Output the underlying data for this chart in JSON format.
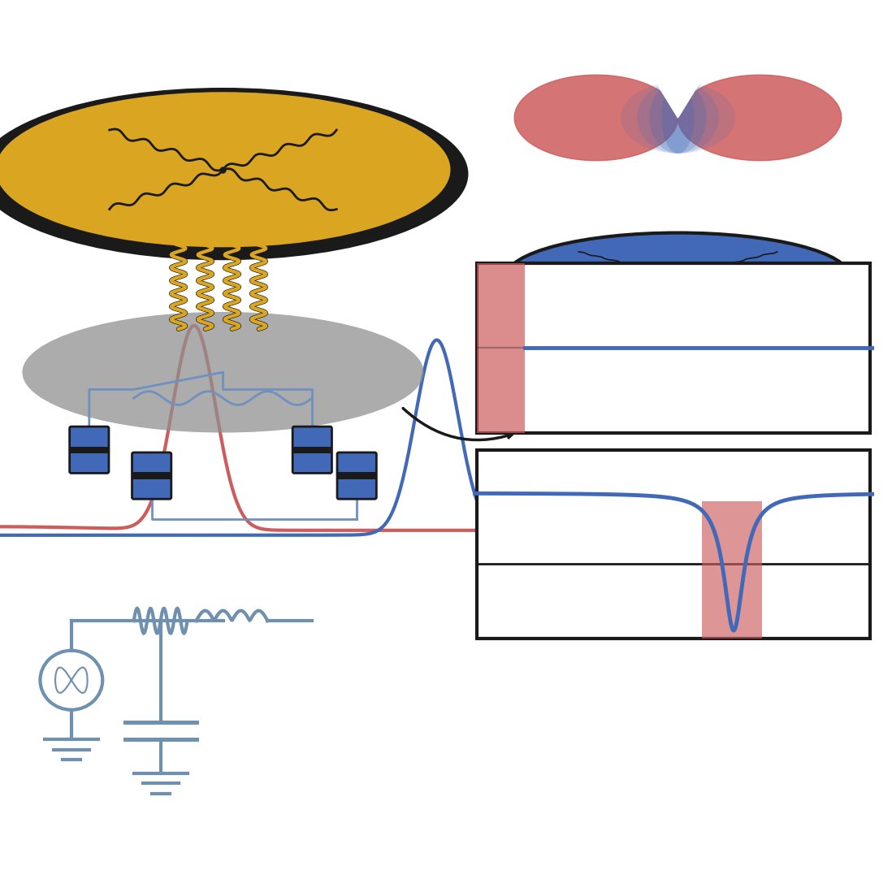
{
  "fig_width": 10.98,
  "fig_height": 10.98,
  "dpi": 100,
  "bg_color": "#ffffff",
  "red_color": "#cd5c5c",
  "blue_color": "#4169b8",
  "gold_color": "#DAA520",
  "dark_color": "#1a1a1a",
  "gray_color": "#909090",
  "light_blue": "#7090c0",
  "panel_bg": "#ffffff"
}
